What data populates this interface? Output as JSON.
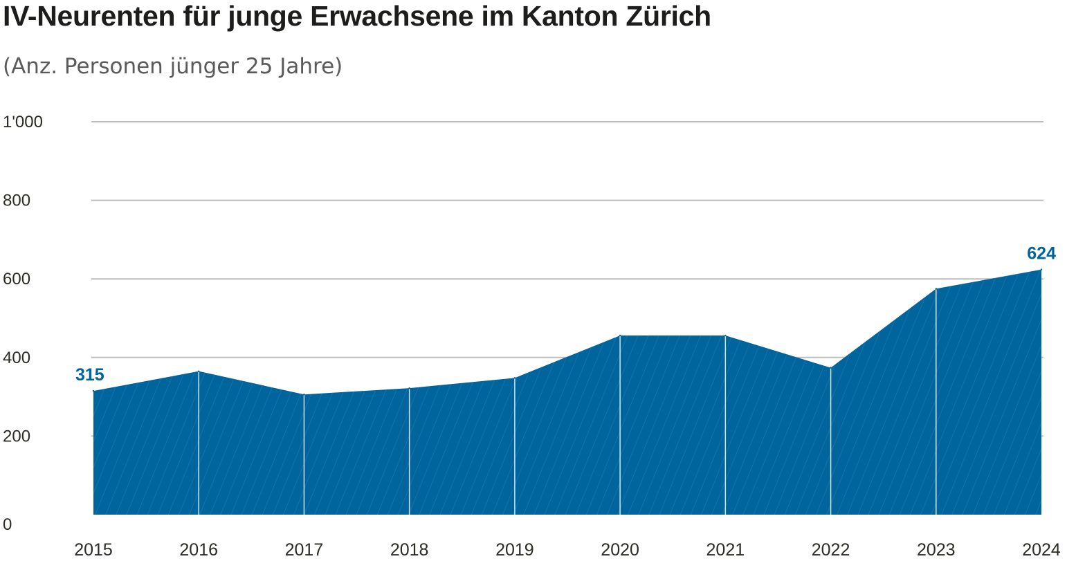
{
  "chart_data": {
    "type": "area",
    "title": "IV-Neurenten für junge Erwachsene im Kanton Zürich",
    "subtitle": "(Anz. Personen jünger 25 Jahre)",
    "x": [
      "2015",
      "2016",
      "2017",
      "2018",
      "2019",
      "2020",
      "2021",
      "2022",
      "2023",
      "2024"
    ],
    "series": [
      {
        "values": [
          315,
          365,
          306,
          322,
          348,
          456,
          456,
          374,
          575,
          624
        ]
      }
    ],
    "ylim": [
      0,
      1000
    ],
    "yticks": [
      0,
      200,
      400,
      600,
      800,
      1000
    ],
    "ytick_labels": [
      "0",
      "200",
      "400",
      "600",
      "800",
      "1'000"
    ],
    "data_labels": [
      {
        "x": "2015",
        "text": "315"
      },
      {
        "x": "2024",
        "text": "624"
      }
    ],
    "grid": true,
    "legend": "none",
    "colors": {
      "area": "#00649d",
      "label": "#00649d",
      "grid": "#bdbdbd",
      "hatch": "#3a86b8",
      "divider": "#cfe7f3"
    }
  }
}
